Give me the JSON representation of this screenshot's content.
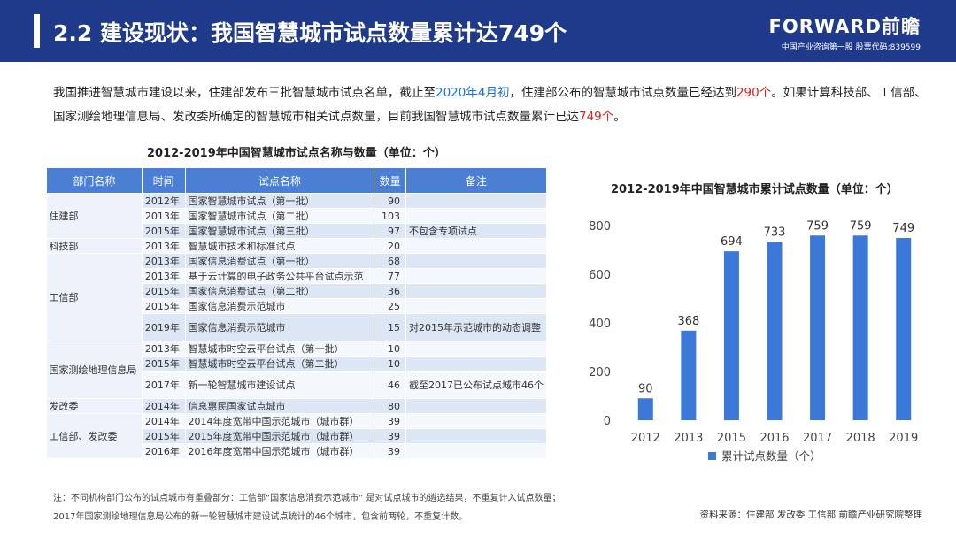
{
  "header": {
    "title": "2.2 建设现状：我国智慧城市试点数量累计达749个",
    "logo_brand": "FORWARD前瞻",
    "logo_slogan": "中国产业咨询第一股 股票代码:839599"
  },
  "intro": {
    "p1": "我国推进智慧城市建设以来，住建部发布三批智慧城市试点名单，截止至",
    "date": "2020年4月初",
    "p2": "，住建部公布的智慧城市试点数量已经达到",
    "count1": "290个",
    "p3": "。如果计算科技部、工信部、国家测绘地理信息局、发改委所确定的智慧城市相关试点数量，目前我国智慧城市试点数量累计已达",
    "count2": "749个",
    "p4": "。"
  },
  "table": {
    "title": "2012-2019年中国智慧城市试点名称与数量（单位：个）",
    "headers": [
      "部门名称",
      "时间",
      "试点名称",
      "数量",
      "备注"
    ],
    "groups": [
      {
        "dept": "住建部",
        "rows": [
          {
            "year": "2012年",
            "name": "国家智慧城市试点（第一批）",
            "qty": "90",
            "remark": ""
          },
          {
            "year": "2013年",
            "name": "国家智慧城市试点（第二批）",
            "qty": "103",
            "remark": ""
          },
          {
            "year": "2015年",
            "name": "国家智慧城市试点（第三批）",
            "qty": "97",
            "remark": "不包含专项试点"
          }
        ]
      },
      {
        "dept": "科技部",
        "rows": [
          {
            "year": "2013年",
            "name": "智慧城市技术和标准试点",
            "qty": "20",
            "remark": ""
          }
        ]
      },
      {
        "dept": "工信部",
        "rows": [
          {
            "year": "2013年",
            "name": "国家信息消费试点（第一批）",
            "qty": "68",
            "remark": ""
          },
          {
            "year": "2013年",
            "name": "基于云计算的电子政务公共平台试点示范",
            "qty": "77",
            "remark": ""
          },
          {
            "year": "2015年",
            "name": "国家信息消费试点（第二批）",
            "qty": "36",
            "remark": ""
          },
          {
            "year": "2015年",
            "name": "国家信息消费示范城市",
            "qty": "25",
            "remark": ""
          },
          {
            "year": "2019年",
            "name": "国家信息消费示范城市",
            "qty": "15",
            "remark": "对2015年示范城市的动态调整"
          }
        ]
      },
      {
        "dept": "国家测绘地理信息局",
        "rows": [
          {
            "year": "2013年",
            "name": "智慧城市时空云平台试点（第一批）",
            "qty": "10",
            "remark": ""
          },
          {
            "year": "2015年",
            "name": "智慧城市时空云平台试点（第二批）",
            "qty": "10",
            "remark": ""
          },
          {
            "year": "2017年",
            "name": "新一轮智慧城市建设试点",
            "qty": "46",
            "remark": "截至2017已公布试点城市46个"
          }
        ]
      },
      {
        "dept": "发改委",
        "rows": [
          {
            "year": "2014年",
            "name": "信息惠民国家试点城市",
            "qty": "80",
            "remark": ""
          }
        ]
      },
      {
        "dept": "工信部、发改委",
        "rows": [
          {
            "year": "2014年",
            "name": "2014年度宽带中国示范城市（城市群）",
            "qty": "39",
            "remark": ""
          },
          {
            "year": "2015年",
            "name": "2015年度宽带中国示范城市（城市群）",
            "qty": "39",
            "remark": ""
          },
          {
            "year": "2016年",
            "name": "2016年度宽带中国示范城市（城市群）",
            "qty": "39",
            "remark": ""
          }
        ]
      }
    ]
  },
  "chart_data": {
    "type": "bar",
    "title": "2012-2019年中国智慧城市累计试点数量（单位：个）",
    "categories": [
      "2012",
      "2013",
      "2015",
      "2016",
      "2017",
      "2018",
      "2019"
    ],
    "series": [
      {
        "name": "累计试点数量（个）",
        "values": [
          90,
          368,
          694,
          733,
          759,
          759,
          749
        ]
      }
    ],
    "ylim": [
      0,
      800
    ],
    "yticks": [
      0,
      200,
      400,
      600,
      800
    ],
    "grid": false,
    "legend": "bottom",
    "bar_color": "#3b78d8"
  },
  "notes": {
    "line1": "注：不同机构部门公布的试点城市有重叠部分：工信部“国家信息消费示范城市” 是对试点城市的遴选结果，不重复计入试点数量；",
    "line2": "2017年国家测绘地理信息局公布的新一轮智慧城市建设试点统计的46个城市，包含前两轮，不重复计数。"
  },
  "source": "资料来源：住建部 发改委 工信部 前瞻产业研究院整理",
  "colors": {
    "header_bg": "#1f3a8a",
    "table_header": "#4a7fd4",
    "highlight_blue": "#1a73e8",
    "highlight_red": "#e02020"
  }
}
